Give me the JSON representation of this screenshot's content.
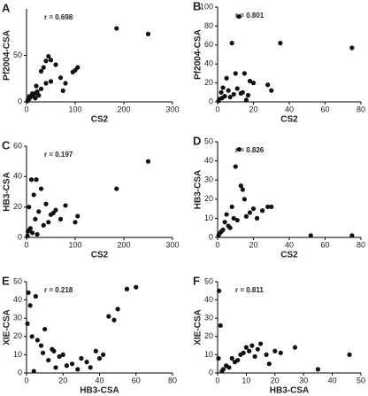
{
  "chart_data": [
    {
      "type": "scatter",
      "panel": "A",
      "annotation": "r = 0.698",
      "xlabel": "CS2",
      "ylabel": "Pf2004-CSA",
      "color": "#111111",
      "xlim": [
        0,
        300
      ],
      "xticks": [
        0,
        100,
        200,
        300
      ],
      "ylim": [
        0,
        100
      ],
      "yticks": [
        0,
        50
      ],
      "x": [
        185,
        250,
        40,
        45,
        50,
        35,
        60,
        100,
        105,
        95,
        70,
        80,
        30,
        20,
        40,
        75,
        10,
        15,
        5,
        20,
        25,
        8,
        12,
        3,
        30,
        50,
        18,
        2,
        6,
        22
      ],
      "values": [
        79,
        73,
        44,
        49,
        45,
        37,
        40,
        34,
        37,
        32,
        26,
        20,
        33,
        17,
        20,
        12,
        6,
        8,
        3,
        10,
        7,
        5,
        9,
        2,
        14,
        22,
        4,
        1,
        6,
        11
      ]
    },
    {
      "type": "scatter",
      "panel": "B",
      "annotation": "r = 0.801",
      "xlabel": "CS2",
      "ylabel": "Pf2004-CSA",
      "color": "#111111",
      "xlim": [
        0,
        80
      ],
      "xticks": [
        0,
        20,
        40,
        60,
        80
      ],
      "ylim": [
        0,
        100
      ],
      "yticks": [
        0,
        20,
        40,
        60,
        80,
        100
      ],
      "x": [
        12,
        35,
        75,
        8,
        15,
        5,
        10,
        18,
        20,
        3,
        6,
        2,
        28,
        30,
        14,
        9,
        7,
        1,
        4,
        16,
        11,
        13,
        0.5,
        2.5,
        17
      ],
      "values": [
        90,
        62,
        57,
        62,
        30,
        25,
        30,
        22,
        20,
        15,
        12,
        10,
        18,
        12,
        10,
        8,
        5,
        3,
        6,
        2,
        14,
        9,
        1,
        4,
        7
      ]
    },
    {
      "type": "scatter",
      "panel": "C",
      "annotation": "r = 0.197",
      "xlabel": "CS2",
      "ylabel": "HB3-CSA",
      "color": "#111111",
      "xlim": [
        0,
        300
      ],
      "xticks": [
        0,
        100,
        200,
        300
      ],
      "ylim": [
        0,
        60
      ],
      "yticks": [
        0,
        20,
        40,
        60
      ],
      "x": [
        250,
        185,
        105,
        60,
        40,
        10,
        20,
        30,
        15,
        5,
        25,
        50,
        70,
        100,
        35,
        8,
        3,
        12,
        45,
        55,
        18,
        22,
        2,
        6,
        80
      ],
      "values": [
        50,
        32,
        14,
        18,
        22,
        38,
        38,
        32,
        28,
        20,
        17,
        15,
        12,
        10,
        8,
        6,
        4,
        3,
        10,
        16,
        12,
        2,
        1,
        5,
        21
      ]
    },
    {
      "type": "scatter",
      "panel": "D",
      "annotation": "r = 0.826",
      "xlabel": "CS2",
      "ylabel": "HB3-CSA",
      "color": "#111111",
      "xlim": [
        0,
        80
      ],
      "xticks": [
        0,
        20,
        40,
        60,
        80
      ],
      "ylim": [
        0,
        50
      ],
      "yticks": [
        0,
        10,
        20,
        30,
        40,
        50
      ],
      "x": [
        12,
        10,
        75,
        52,
        13,
        14,
        8,
        5,
        20,
        28,
        30,
        16,
        4,
        2,
        6,
        9,
        18,
        11,
        3,
        1,
        7,
        15,
        25,
        0.5,
        22
      ],
      "values": [
        46,
        37,
        1,
        1,
        27,
        25,
        16,
        12,
        15,
        16,
        16,
        11,
        8,
        3,
        6,
        10,
        13,
        9,
        4,
        2,
        5,
        20,
        14,
        1,
        10
      ]
    },
    {
      "type": "scatter",
      "panel": "E",
      "annotation": "r = 0.218",
      "xlabel": "HB3-CSA",
      "ylabel": "XIE-CSA",
      "color": "#111111",
      "xlim": [
        0,
        80
      ],
      "xticks": [
        0,
        20,
        40,
        60,
        80
      ],
      "ylim": [
        0,
        50
      ],
      "yticks": [
        0,
        10,
        20,
        30,
        40,
        50
      ],
      "x": [
        60,
        55,
        50,
        48,
        45,
        42,
        5,
        1,
        2,
        0.5,
        3,
        10,
        20,
        30,
        15,
        25,
        35,
        8,
        12,
        18,
        22,
        40,
        28,
        6,
        4,
        14,
        33,
        38,
        16,
        9
      ],
      "values": [
        47,
        46,
        35,
        29,
        31,
        10,
        42,
        44,
        37,
        27,
        20,
        24,
        10,
        8,
        12,
        5,
        3,
        15,
        7,
        9,
        4,
        8,
        2,
        18,
        1,
        13,
        6,
        12,
        3,
        11
      ]
    },
    {
      "type": "scatter",
      "panel": "F",
      "annotation": "r = 0.811",
      "xlabel": "HB3-CSA",
      "ylabel": "XIE-CSA",
      "color": "#111111",
      "xlim": [
        0,
        50
      ],
      "xticks": [
        0,
        10,
        20,
        30,
        40,
        50
      ],
      "ylim": [
        0,
        50
      ],
      "yticks": [
        0,
        10,
        20,
        30,
        40,
        50
      ],
      "x": [
        0.5,
        1,
        10,
        12,
        15,
        20,
        27,
        35,
        46,
        5,
        8,
        3,
        2,
        6,
        9,
        11,
        13,
        4,
        7,
        14,
        17,
        1.5,
        0.3,
        22,
        18
      ],
      "values": [
        45,
        26,
        14,
        15,
        16,
        12,
        14,
        2,
        10,
        8,
        10,
        4,
        2,
        6,
        11,
        12,
        9,
        3,
        7,
        13,
        10,
        1,
        8,
        11,
        5
      ]
    }
  ]
}
